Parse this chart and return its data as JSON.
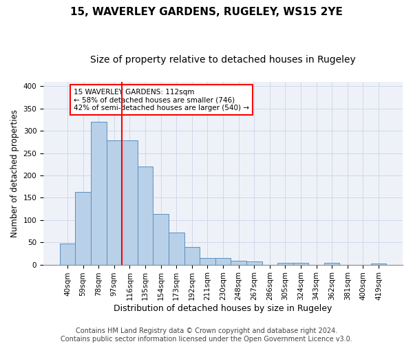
{
  "title": "15, WAVERLEY GARDENS, RUGELEY, WS15 2YE",
  "subtitle": "Size of property relative to detached houses in Rugeley",
  "xlabel": "Distribution of detached houses by size in Rugeley",
  "ylabel": "Number of detached properties",
  "footer_line1": "Contains HM Land Registry data © Crown copyright and database right 2024.",
  "footer_line2": "Contains public sector information licensed under the Open Government Licence v3.0.",
  "categories": [
    "40sqm",
    "59sqm",
    "78sqm",
    "97sqm",
    "116sqm",
    "135sqm",
    "154sqm",
    "173sqm",
    "192sqm",
    "211sqm",
    "230sqm",
    "248sqm",
    "267sqm",
    "286sqm",
    "305sqm",
    "324sqm",
    "343sqm",
    "362sqm",
    "381sqm",
    "400sqm",
    "419sqm"
  ],
  "values": [
    47,
    163,
    320,
    278,
    278,
    220,
    113,
    72,
    39,
    15,
    15,
    9,
    7,
    0,
    4,
    4,
    0,
    4,
    0,
    0,
    3
  ],
  "bar_color": "#b8d0e8",
  "bar_edge_color": "#5a8fc0",
  "annotation_text": "15 WAVERLEY GARDENS: 112sqm\n← 58% of detached houses are smaller (746)\n42% of semi-detached houses are larger (540) →",
  "annotation_box_color": "white",
  "annotation_box_edge_color": "red",
  "property_line_x": 3.5,
  "property_line_color": "red",
  "ylim": [
    0,
    410
  ],
  "yticks": [
    0,
    50,
    100,
    150,
    200,
    250,
    300,
    350,
    400
  ],
  "grid_color": "#d0d8e8",
  "background_color": "#eef2f8",
  "title_fontsize": 11,
  "subtitle_fontsize": 10,
  "xlabel_fontsize": 9,
  "ylabel_fontsize": 8.5,
  "tick_fontsize": 7.5,
  "footer_fontsize": 7
}
